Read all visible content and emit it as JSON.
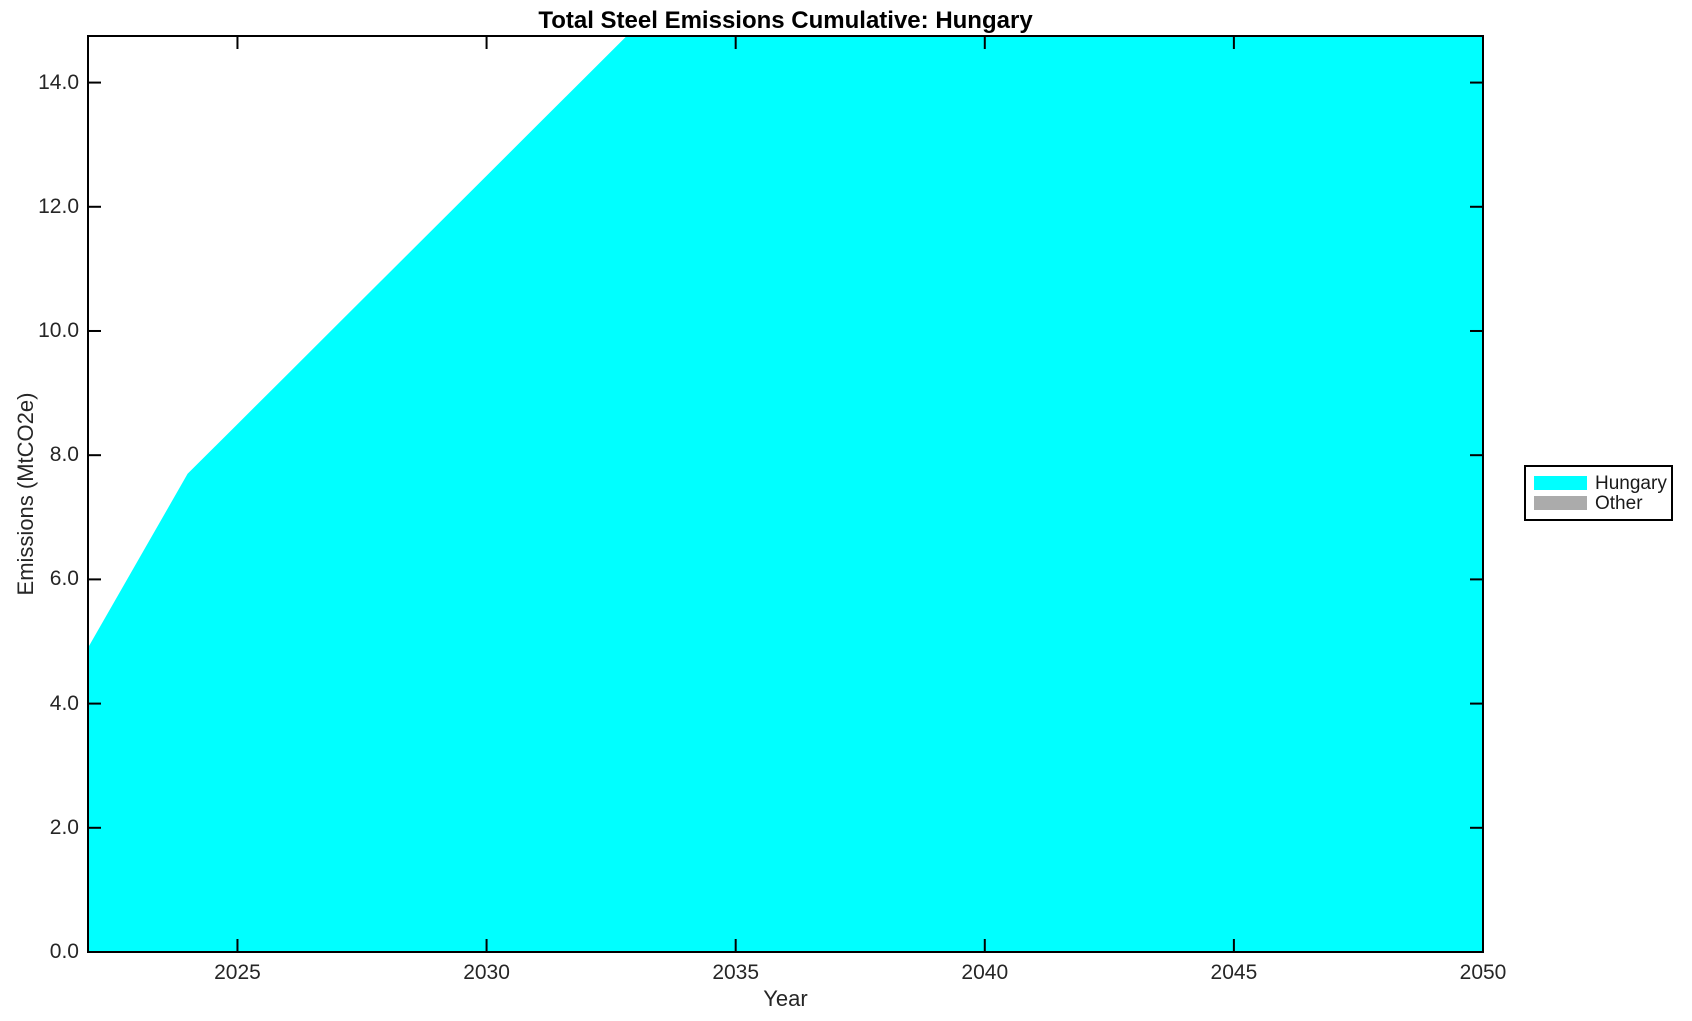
{
  "chart_data": {
    "type": "area",
    "stacked": true,
    "title": "Total Steel Emissions Cumulative: Hungary",
    "xlabel": "Year",
    "ylabel": "Emissions (MtCO2e)",
    "x": [
      2022,
      2023,
      2024,
      2025,
      2026,
      2027,
      2028,
      2029,
      2030,
      2031,
      2032,
      2033,
      2034,
      2035,
      2036,
      2037,
      2038,
      2039,
      2040,
      2041,
      2042,
      2043,
      2044,
      2045,
      2046,
      2047,
      2048,
      2049,
      2050
    ],
    "series": [
      {
        "name": "Hungary",
        "color": "#00ffff",
        "values": [
          4.9,
          6.3,
          7.7,
          8.5,
          9.3,
          10.1,
          10.9,
          11.7,
          12.5,
          13.3,
          14.1,
          14.9,
          15.7,
          16.5,
          17.3,
          18.1,
          18.9,
          19.7,
          20.5,
          21.3,
          22.1,
          22.9,
          23.7,
          24.5,
          25.3,
          26.1,
          26.9,
          27.7,
          28.5
        ]
      },
      {
        "name": "Other",
        "color": "#ababab",
        "values": [
          0,
          0,
          0,
          0,
          0,
          0,
          0,
          0,
          0,
          0,
          0,
          0,
          0,
          0,
          0,
          0,
          0,
          0,
          0,
          0,
          0,
          0,
          0,
          0,
          0,
          0,
          0,
          0,
          0
        ]
      }
    ],
    "xlim": [
      2022,
      2050
    ],
    "ylim": [
      0,
      14.75
    ],
    "xticks": {
      "values": [
        2025,
        2030,
        2035,
        2040,
        2045,
        2050
      ],
      "labels": [
        "2025",
        "2030",
        "2035",
        "2040",
        "2045",
        "2050"
      ]
    },
    "yticks": {
      "values": [
        0,
        2,
        4,
        6,
        8,
        10,
        12,
        14
      ],
      "labels": [
        "0.0",
        "2.0",
        "4.0",
        "6.0",
        "8.0",
        "10.0",
        "12.0",
        "14.0"
      ]
    },
    "grid": false,
    "legend": {
      "position": "right-outside"
    },
    "background": "#ffffff",
    "axis_color": "#000000",
    "text_color": "#262626",
    "note": "Area clipped at top of axes; series exceeds y-axis maximum after ~2033"
  }
}
